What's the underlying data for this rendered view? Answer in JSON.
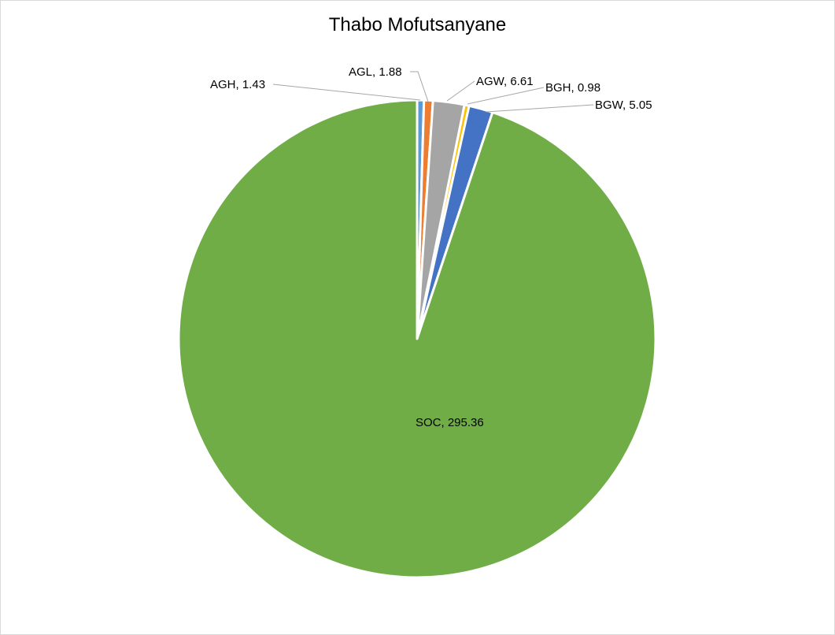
{
  "chart_data": {
    "type": "pie",
    "title": "Thabo Mofutsanyane",
    "slices": [
      {
        "label": "AGH",
        "value": 1.43,
        "display": "AGH, 1.43",
        "color": "#5B9BD5"
      },
      {
        "label": "AGL",
        "value": 1.88,
        "display": "AGL, 1.88",
        "color": "#ED7D31"
      },
      {
        "label": "AGW",
        "value": 6.61,
        "display": "AGW, 6.61",
        "color": "#A5A5A5"
      },
      {
        "label": "BGH",
        "value": 0.98,
        "display": "BGH, 0.98",
        "color": "#FFC000"
      },
      {
        "label": "BGW",
        "value": 5.05,
        "display": "BGW, 5.05",
        "color": "#4472C4"
      },
      {
        "label": "SOC",
        "value": 295.36,
        "display": "SOC, 295.36",
        "color": "#70AD47"
      }
    ],
    "legend": "none",
    "data_labels": "category and value",
    "leader_line_color": "#a6a6a6",
    "slice_border_color": "#ffffff"
  }
}
